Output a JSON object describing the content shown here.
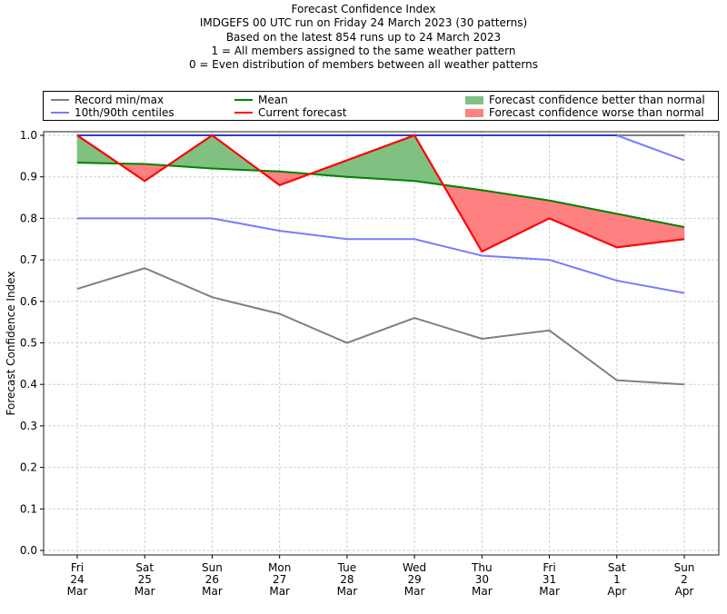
{
  "chart_data": {
    "type": "line",
    "title_lines": [
      "Forecast Confidence Index",
      "IMDGEFS 00 UTC run on Friday 24 March 2023 (30 patterns)",
      "Based on the latest 854 runs up to 24 March 2023",
      "1 = All members assigned to the same weather pattern",
      "0 = Even distribution of members between all weather patterns"
    ],
    "xlabel": "",
    "ylabel": "Forecast Confidence Index",
    "ylim": [
      0.0,
      1.0
    ],
    "yticks": [
      "0.0",
      "0.1",
      "0.2",
      "0.3",
      "0.4",
      "0.5",
      "0.6",
      "0.7",
      "0.8",
      "0.9",
      "1.0"
    ],
    "ytick_values": [
      0.0,
      0.1,
      0.2,
      0.3,
      0.4,
      0.5,
      0.6,
      0.7,
      0.8,
      0.9,
      1.0
    ],
    "grid": true,
    "legend_placement": "top (above plot), 3 columns",
    "categories": [
      [
        "Fri",
        "24",
        "Mar"
      ],
      [
        "Sat",
        "25",
        "Mar"
      ],
      [
        "Sun",
        "26",
        "Mar"
      ],
      [
        "Mon",
        "27",
        "Mar"
      ],
      [
        "Tue",
        "28",
        "Mar"
      ],
      [
        "Wed",
        "29",
        "Mar"
      ],
      [
        "Thu",
        "30",
        "Mar"
      ],
      [
        "Fri",
        "31",
        "Mar"
      ],
      [
        "Sat",
        "1",
        "Apr"
      ],
      [
        "Sun",
        "2",
        "Apr"
      ]
    ],
    "series": [
      {
        "name": "Record max",
        "legend": "Record min/max",
        "color": "#808080",
        "values": [
          1.0,
          1.0,
          1.0,
          1.0,
          1.0,
          1.0,
          1.0,
          1.0,
          1.0,
          1.0
        ]
      },
      {
        "name": "Record min",
        "legend": "Record min/max",
        "color": "#808080",
        "values": [
          0.63,
          0.68,
          0.61,
          0.57,
          0.5,
          0.56,
          0.51,
          0.53,
          0.41,
          0.4
        ]
      },
      {
        "name": "90th centile",
        "legend": "10th/90th centiles",
        "color": "#7a7aff",
        "values": [
          1.0,
          1.0,
          1.0,
          1.0,
          1.0,
          1.0,
          1.0,
          1.0,
          1.0,
          0.94
        ]
      },
      {
        "name": "10th centile",
        "legend": "10th/90th centiles",
        "color": "#7a7aff",
        "values": [
          0.8,
          0.8,
          0.8,
          0.77,
          0.75,
          0.75,
          0.71,
          0.7,
          0.65,
          0.62
        ]
      },
      {
        "name": "Mean",
        "legend": "Mean",
        "color": "#008000",
        "values": [
          0.934,
          0.931,
          0.92,
          0.913,
          0.9,
          0.89,
          0.868,
          0.843,
          0.811,
          0.779
        ]
      },
      {
        "name": "Current forecast",
        "legend": "Current forecast",
        "color": "#ff0000",
        "values": [
          1.0,
          0.89,
          1.0,
          0.88,
          0.94,
          1.0,
          0.72,
          0.8,
          0.73,
          0.75
        ]
      }
    ],
    "fills": [
      {
        "name": "Forecast confidence better than normal",
        "color": "#80c080",
        "rule": "current > mean"
      },
      {
        "name": "Forecast confidence worse than normal",
        "color": "#ff8080",
        "rule": "current < mean"
      }
    ]
  },
  "legend": {
    "items": [
      {
        "label": "Record min/max",
        "color": "#808080",
        "kind": "line"
      },
      {
        "label": "10th/90th centiles",
        "color": "#7a7aff",
        "kind": "line"
      },
      {
        "label": "Mean",
        "color": "#008000",
        "kind": "line"
      },
      {
        "label": "Current forecast",
        "color": "#ff0000",
        "kind": "line"
      },
      {
        "label": "Forecast confidence better than normal",
        "color": "#80c080",
        "kind": "patch"
      },
      {
        "label": "Forecast confidence worse than normal",
        "color": "#ff8080",
        "kind": "patch"
      }
    ]
  }
}
